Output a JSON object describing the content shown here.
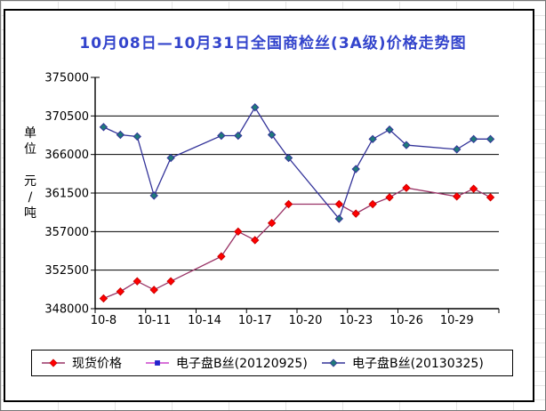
{
  "chart_data": {
    "type": "line",
    "title": "10月08日—10月31日全国商检丝(3A级)价格走势图",
    "title_color": "#3344cc",
    "ylabel": "单位\n\n元\n/\n吨",
    "ylim": [
      348000,
      375000
    ],
    "yticks": [
      375000,
      370500,
      366000,
      361500,
      357000,
      352500,
      348000
    ],
    "grid": "horizontal",
    "legend_position": "bottom",
    "categories": [
      "10-8",
      "10-9",
      "10-10",
      "10-11",
      "10-12",
      "10-13",
      "10-14",
      "10-15",
      "10-16",
      "10-17",
      "10-18",
      "10-19",
      "10-20",
      "10-21",
      "10-22",
      "10-23",
      "10-24",
      "10-25",
      "10-26",
      "10-27",
      "10-28",
      "10-29",
      "10-30",
      "10-31"
    ],
    "xtick_label_indices": [
      0,
      3,
      6,
      9,
      12,
      15,
      18,
      21
    ],
    "xtick_labels": [
      "10-8",
      "10-11",
      "10-14",
      "10-17",
      "10-20",
      "10-23",
      "10-26",
      "10-29"
    ],
    "series": [
      {
        "name": "现货价格",
        "line_color": "#993366",
        "marker": "diamond",
        "marker_color": "#ff0000",
        "marker_edge": "#cc0000",
        "values": [
          349200,
          350000,
          351200,
          350200,
          351200,
          null,
          null,
          354100,
          357000,
          356000,
          358000,
          360200,
          null,
          null,
          360200,
          359100,
          360200,
          361000,
          362100,
          null,
          null,
          361100,
          362000,
          361000
        ]
      },
      {
        "name": "电子盘B丝(20120925)",
        "line_color": "#cc44cc",
        "marker": "square",
        "marker_color": "#2222cc",
        "marker_edge": "#2222cc",
        "values": [
          null,
          null,
          null,
          null,
          null,
          null,
          null,
          null,
          null,
          null,
          null,
          null,
          null,
          null,
          null,
          null,
          null,
          null,
          null,
          null,
          null,
          null,
          null,
          null
        ]
      },
      {
        "name": "电子盘B丝(20130325)",
        "line_color": "#333399",
        "marker": "diamond",
        "marker_color": "#1f7a7a",
        "marker_edge": "#333399",
        "values": [
          369200,
          368300,
          368100,
          361200,
          365600,
          null,
          null,
          368200,
          368200,
          371500,
          368300,
          365600,
          null,
          null,
          358500,
          364300,
          367800,
          368900,
          367100,
          null,
          null,
          366600,
          367800,
          367800
        ]
      }
    ]
  }
}
